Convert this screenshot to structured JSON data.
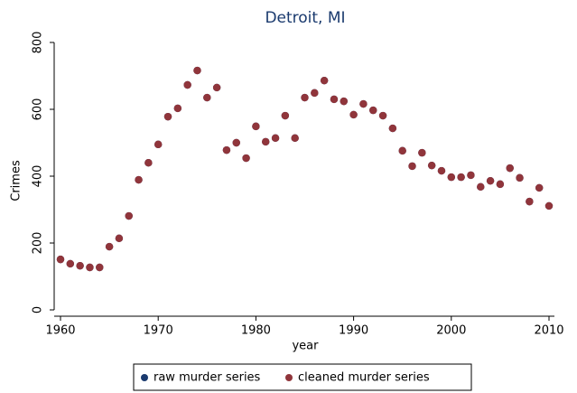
{
  "chart_data": {
    "type": "scatter",
    "title": "Detroit, MI",
    "xlabel": "year",
    "ylabel": "Crimes",
    "x": [
      1960,
      1961,
      1962,
      1963,
      1964,
      1965,
      1966,
      1967,
      1968,
      1969,
      1970,
      1971,
      1972,
      1973,
      1974,
      1975,
      1976,
      1977,
      1978,
      1979,
      1980,
      1981,
      1982,
      1983,
      1984,
      1985,
      1986,
      1987,
      1988,
      1989,
      1990,
      1991,
      1992,
      1993,
      1994,
      1995,
      1996,
      1997,
      1998,
      1999,
      2000,
      2001,
      2002,
      2003,
      2004,
      2005,
      2006,
      2007,
      2008,
      2009,
      2010
    ],
    "series": [
      {
        "name": "raw murder series",
        "color": "#1a3a6e",
        "values": [
          151,
          138,
          132,
          127,
          127,
          189,
          214,
          281,
          389,
          440,
          495,
          578,
          603,
          673,
          716,
          635,
          665,
          478,
          500,
          454,
          549,
          503,
          514,
          581,
          514,
          635,
          649,
          686,
          630,
          624,
          584,
          616,
          597,
          581,
          543,
          476,
          430,
          470,
          432,
          416,
          397,
          397,
          403,
          368,
          386,
          376,
          424,
          395,
          324,
          365,
          311
        ]
      },
      {
        "name": "cleaned murder series",
        "color": "#90353b",
        "values": [
          151,
          138,
          132,
          127,
          127,
          189,
          214,
          281,
          389,
          440,
          495,
          578,
          603,
          673,
          716,
          635,
          665,
          478,
          500,
          454,
          549,
          503,
          514,
          581,
          514,
          635,
          649,
          686,
          630,
          624,
          584,
          616,
          597,
          581,
          543,
          476,
          430,
          470,
          432,
          416,
          397,
          397,
          403,
          368,
          386,
          376,
          424,
          395,
          324,
          365,
          311
        ]
      }
    ],
    "xlim": [
      1960,
      2010
    ],
    "xticks": [
      1960,
      1970,
      1980,
      1990,
      2000,
      2010
    ],
    "ylim": [
      0,
      800
    ],
    "yticks": [
      0,
      200,
      400,
      600,
      800
    ]
  }
}
